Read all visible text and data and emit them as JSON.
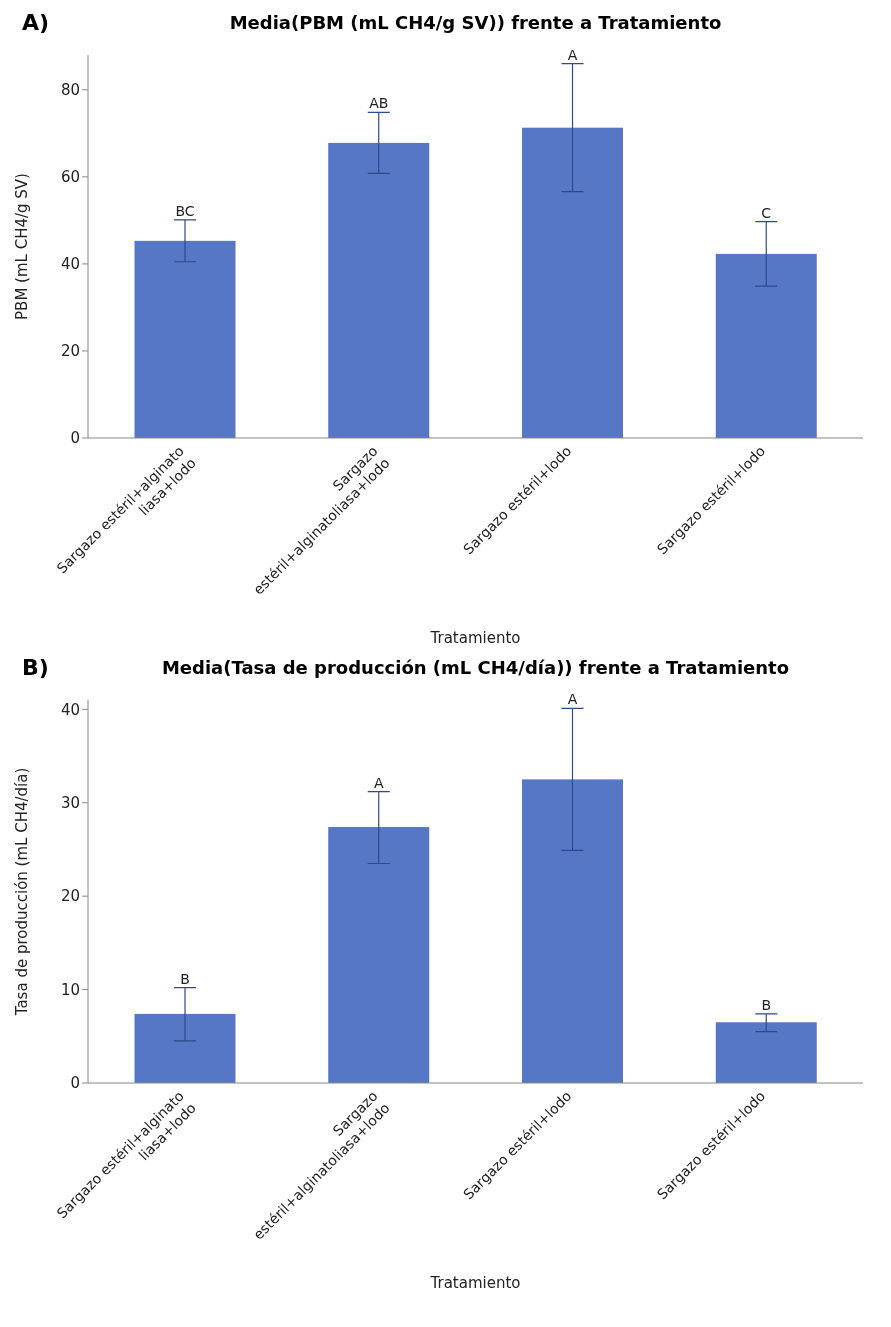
{
  "chart_data": [
    {
      "type": "bar",
      "title": "Media(PBM (mL CH4/g SV)) frente a Tratamiento",
      "xlabel": "Tratamiento",
      "ylabel": "PBM (mL CH4/g SV)",
      "categories": [
        "Sargazo estéril+alginato\nliasa+lodo",
        "Sargazo\nestéril+alginatoliasa+lodo",
        "Sargazo estéril+lodo",
        "Sargazo estéril+lodo"
      ],
      "values": [
        45.3,
        67.8,
        71.3,
        42.3
      ],
      "color": "#5677c5",
      "errors": [
        [
          40.5,
          50.1
        ],
        [
          60.8,
          74.8
        ],
        [
          56.6,
          86.0
        ],
        [
          34.9,
          49.7
        ]
      ],
      "ylim": [
        0,
        88
      ],
      "yticks": [
        0,
        20,
        40,
        60,
        80
      ],
      "grid": false,
      "annotations": [
        "A)",
        "BC",
        "AB",
        "A",
        "C"
      ]
    },
    {
      "type": "bar",
      "title": "Media(Tasa de producción (mL CH4/día)) frente a Tratamiento",
      "xlabel": "Tratamiento",
      "ylabel": "Tasa de producción (mL CH4/día)",
      "categories": [
        "Sargazo estéril+alginato\nliasa+lodo",
        "Sargazo\nestéril+alginatoliasa+lodo",
        "Sargazo estéril+lodo",
        "Sargazo estéril+lodo"
      ],
      "values": [
        7.4,
        27.4,
        32.5,
        6.5
      ],
      "color": "#5677c5",
      "errors": [
        [
          4.5,
          10.2
        ],
        [
          23.5,
          31.2
        ],
        [
          24.9,
          40.1
        ],
        [
          5.5,
          7.4
        ]
      ],
      "ylim": [
        0,
        41
      ],
      "yticks": [
        0,
        10,
        20,
        30,
        40
      ],
      "grid": false,
      "annotations": [
        "B)",
        "B",
        "A",
        "A",
        "B"
      ]
    }
  ]
}
